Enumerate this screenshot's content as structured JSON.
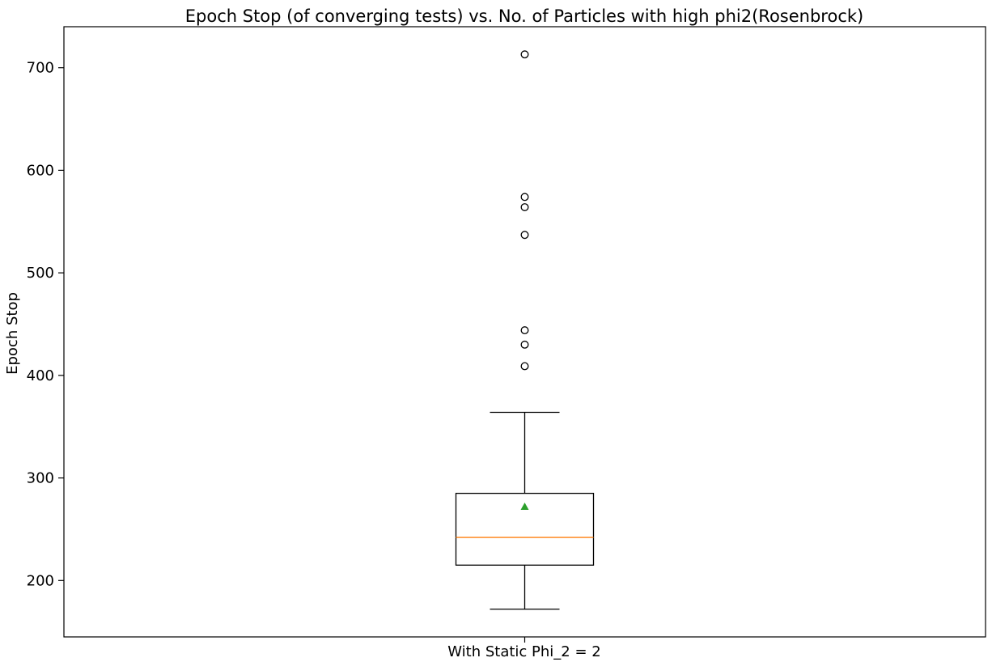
{
  "chart_data": {
    "type": "box",
    "title": "Epoch Stop (of converging tests) vs. No. of Particles with high phi2(Rosenbrock)",
    "xlabel": "With Static Phi_2 = 2",
    "ylabel": "Epoch Stop",
    "ylim": [
      145,
      740
    ],
    "yticks": [
      200,
      300,
      400,
      500,
      600,
      700
    ],
    "grid": false,
    "legend": "none",
    "boxes": [
      {
        "category": "With Static Phi_2 = 2",
        "whisker_low": 172,
        "q1": 215,
        "median": 242,
        "q3": 285,
        "whisker_high": 364,
        "mean": 272,
        "outliers": [
          409,
          430,
          444,
          537,
          564,
          574,
          713
        ]
      }
    ],
    "colors": {
      "box": "#000000",
      "median": "#ff7f0e",
      "mean": "#2ca02c",
      "outlier_edge": "#000000"
    }
  }
}
